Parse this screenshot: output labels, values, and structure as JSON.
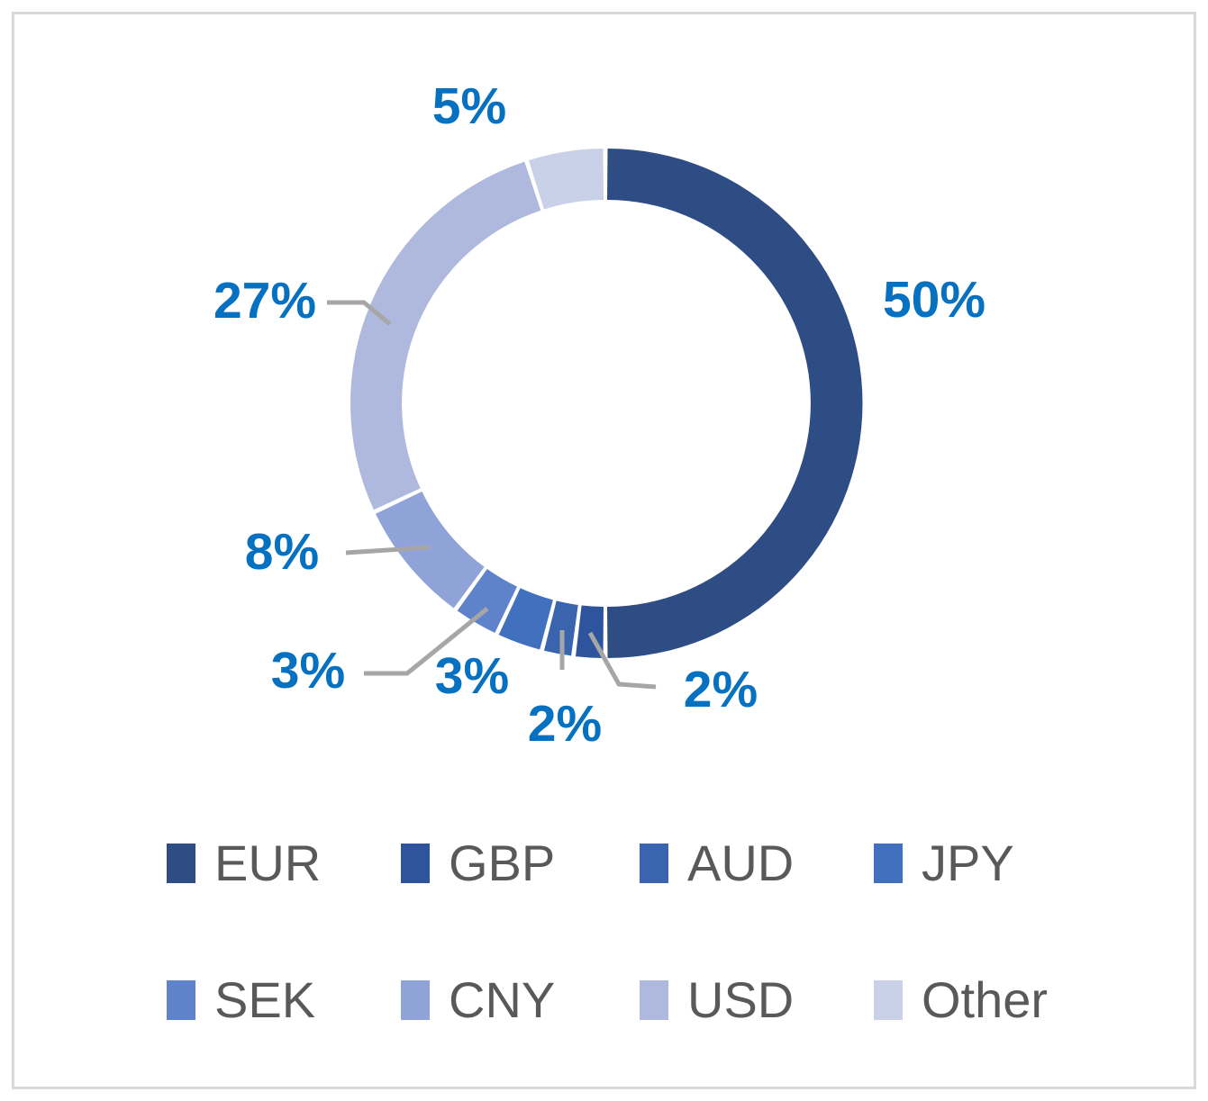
{
  "frame": {
    "border_color": "#D9D9D9",
    "background_color": "#FFFFFF"
  },
  "chart_data": {
    "type": "pie",
    "subtype": "donut",
    "title": "",
    "unit": "%",
    "start_angle_deg": 0,
    "direction": "clockwise",
    "hole_ratio": 0.8,
    "grid": "off",
    "data_label_color": "#0670C1",
    "leader_line_color": "#A6A6A6",
    "series": [
      {
        "name": "EUR",
        "value": 50,
        "label": "50%",
        "color": "#2E4D84"
      },
      {
        "name": "GBP",
        "value": 2,
        "label": "2%",
        "color": "#2F549E"
      },
      {
        "name": "AUD",
        "value": 2,
        "label": "2%",
        "color": "#3A64AE"
      },
      {
        "name": "JPY",
        "value": 3,
        "label": "3%",
        "color": "#4070BE"
      },
      {
        "name": "SEK",
        "value": 3,
        "label": "3%",
        "color": "#5F83CB"
      },
      {
        "name": "CNY",
        "value": 8,
        "label": "8%",
        "color": "#8FA3D8"
      },
      {
        "name": "USD",
        "value": 27,
        "label": "27%",
        "color": "#AEB9DD"
      },
      {
        "name": "Other",
        "value": 5,
        "label": "5%",
        "color": "#C9D1E8"
      }
    ],
    "legend": {
      "position": "bottom",
      "rows": 2,
      "text_color": "#595959",
      "items": [
        "EUR",
        "GBP",
        "AUD",
        "JPY",
        "SEK",
        "CNY",
        "USD",
        "Other"
      ]
    }
  }
}
